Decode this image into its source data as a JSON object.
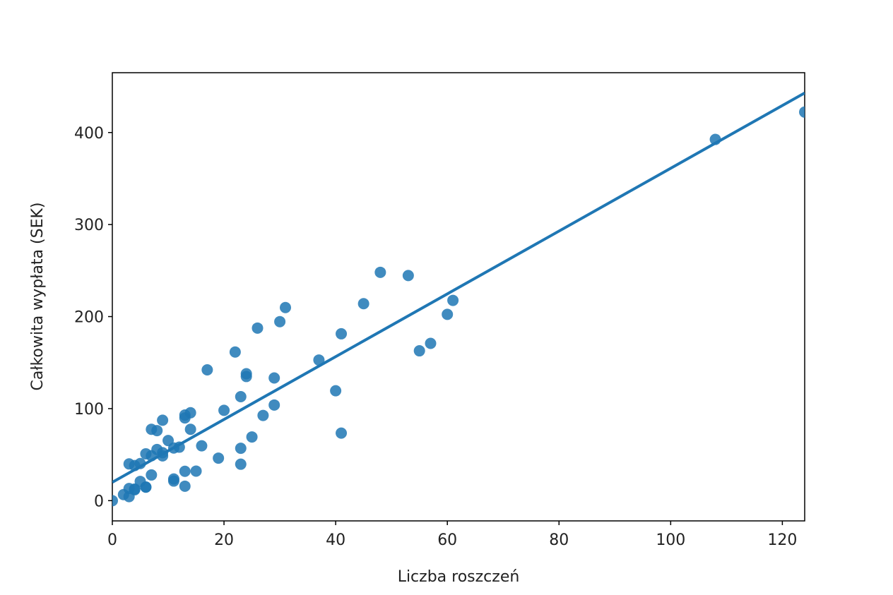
{
  "chart_data": {
    "type": "scatter",
    "x_label": "Liczba roszczeń",
    "y_label": "Całkowita wypłata (SEK)",
    "color": "#1f77b4",
    "x": [
      108,
      19,
      13,
      124,
      40,
      57,
      23,
      14,
      45,
      10,
      5,
      48,
      11,
      23,
      7,
      2,
      24,
      6,
      3,
      23,
      6,
      9,
      9,
      3,
      29,
      7,
      4,
      20,
      7,
      4,
      0,
      25,
      6,
      5,
      22,
      11,
      61,
      12,
      4,
      16,
      13,
      60,
      41,
      37,
      55,
      41,
      11,
      27,
      8,
      3,
      17,
      13,
      13,
      15,
      8,
      29,
      30,
      24,
      9,
      31,
      14,
      53,
      26
    ],
    "values": [
      392.5,
      46.2,
      15.7,
      422.2,
      119.4,
      170.9,
      56.9,
      77.5,
      214,
      65.3,
      20.9,
      248.1,
      23.5,
      39.6,
      48.8,
      6.6,
      134.9,
      50.9,
      4.4,
      113,
      14.8,
      48.7,
      52.1,
      13.2,
      103.9,
      77.5,
      11.8,
      98.1,
      27.9,
      38.1,
      0,
      69.2,
      14.6,
      40.3,
      161.5,
      57.2,
      217.6,
      58.1,
      12.6,
      59.6,
      89.9,
      202.4,
      181.3,
      152.8,
      162.8,
      73.4,
      21.3,
      92.6,
      76.1,
      39.9,
      142.1,
      93,
      31.9,
      32.1,
      55.6,
      133.3,
      194.5,
      137.9,
      87.4,
      209.8,
      95.5,
      244.6,
      187.5
    ],
    "regression": {
      "x": [
        0,
        124
      ],
      "y": [
        20,
        443
      ]
    },
    "xlim": [
      0,
      124
    ],
    "ylim": [
      -22,
      465
    ],
    "xticks": [
      0,
      20,
      40,
      60,
      80,
      100,
      120
    ],
    "yticks": [
      0,
      100,
      200,
      300,
      400
    ]
  }
}
